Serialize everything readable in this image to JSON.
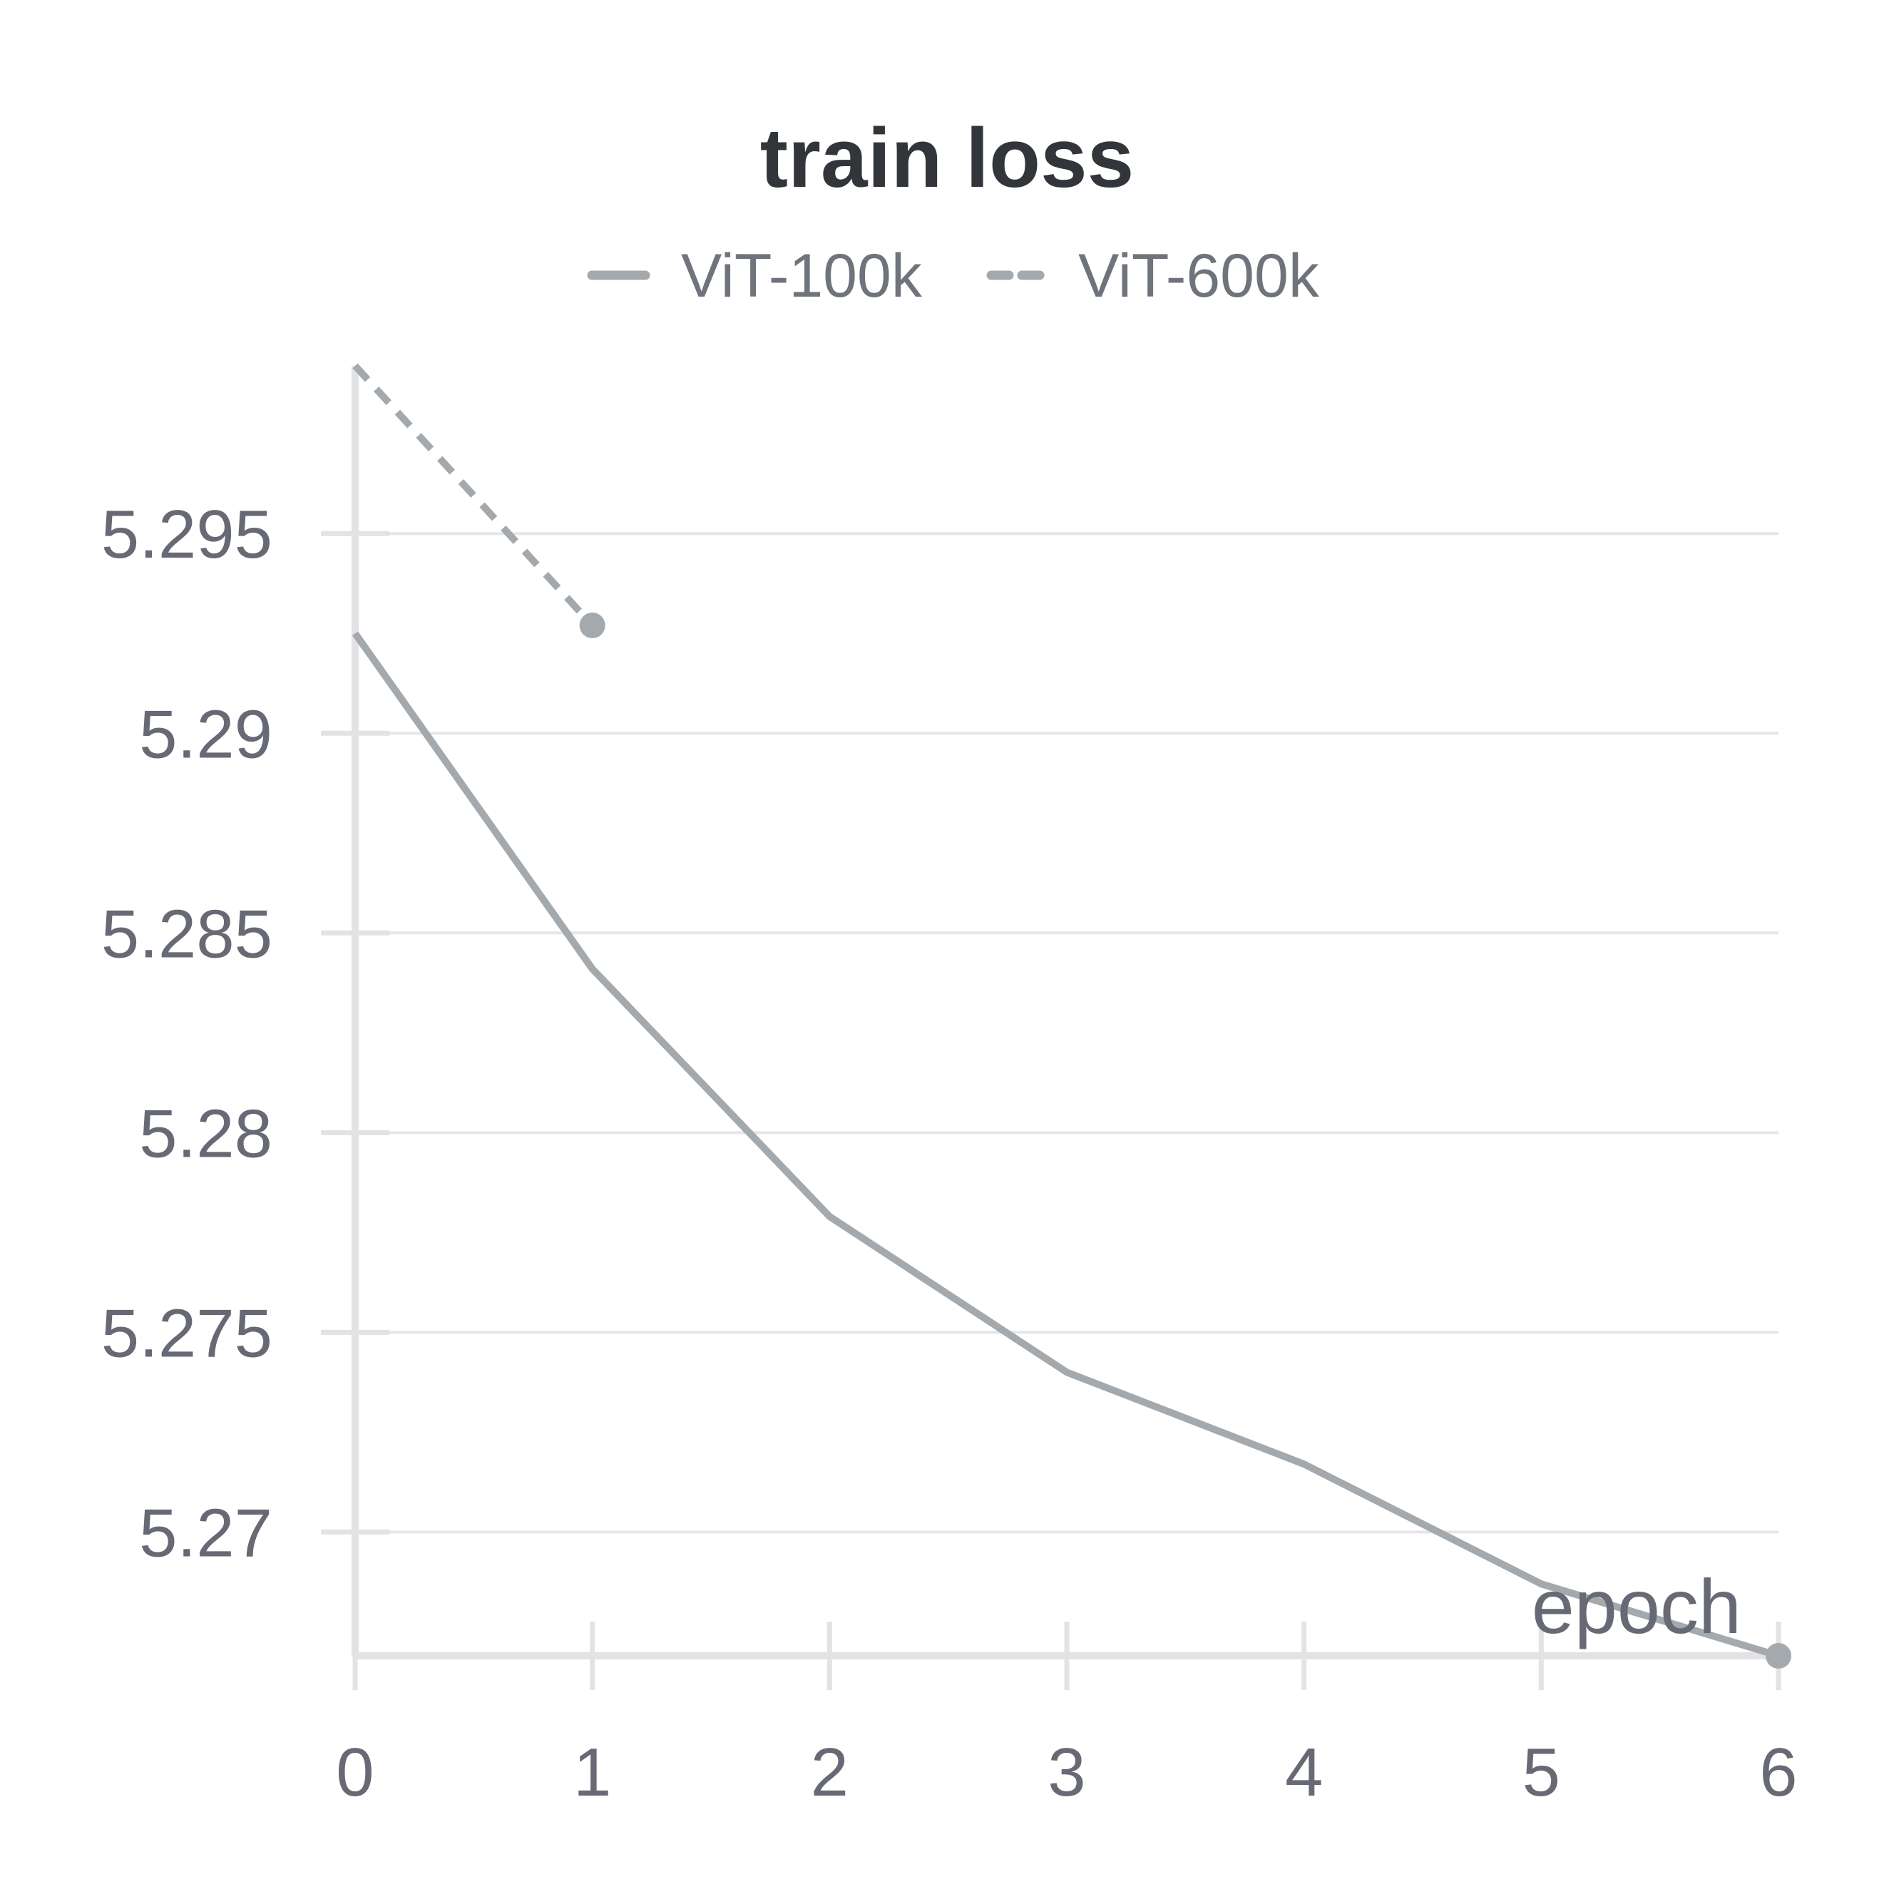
{
  "colors": {
    "series": "#a4a9ad",
    "grid": "#e6e6e8",
    "axis": "#e3e3e5",
    "title": "#32363b",
    "text": "#676a75"
  },
  "chart_data": {
    "type": "line",
    "title": "train loss",
    "xlabel": "epoch",
    "ylabel": "",
    "xlim": [
      0,
      6
    ],
    "ylim": [
      5.2669,
      5.2992
    ],
    "x_ticks": [
      0,
      1,
      2,
      3,
      4,
      5,
      6
    ],
    "x_tick_labels": [
      "0",
      "1",
      "2",
      "3",
      "4",
      "5",
      "6"
    ],
    "y_ticks": [
      5.27,
      5.275,
      5.28,
      5.285,
      5.29,
      5.295
    ],
    "y_tick_labels": [
      "5.27",
      "5.275",
      "5.28",
      "5.285",
      "5.29",
      "5.295"
    ],
    "grid": true,
    "legend_position": "top-center",
    "series": [
      {
        "name": "ViT-100k",
        "style": "solid",
        "icon": "solid-line",
        "color": "#a4a9ad",
        "x": [
          0,
          1,
          2,
          3,
          4,
          5,
          6
        ],
        "y": [
          5.2925,
          5.2841,
          5.2779,
          5.274,
          5.2717,
          5.2687,
          5.2669
        ],
        "end_marker": true
      },
      {
        "name": "ViT-600k",
        "style": "dashed",
        "icon": "dashed-line",
        "color": "#a4a9ad",
        "x": [
          0,
          1
        ],
        "y": [
          5.2992,
          5.2927
        ],
        "end_marker": true
      }
    ]
  }
}
